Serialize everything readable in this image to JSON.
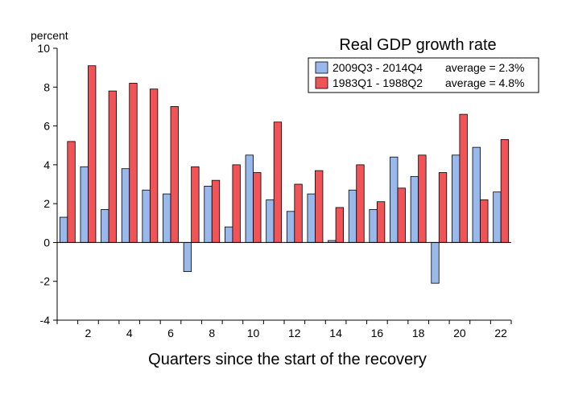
{
  "chart_data": {
    "type": "bar",
    "title": "Real GDP growth rate",
    "ylabel": "percent",
    "xlabel": "Quarters since the start of the recovery",
    "ylim": [
      -4,
      10
    ],
    "yticks": [
      -4,
      -2,
      0,
      2,
      4,
      6,
      8,
      10
    ],
    "categories": [
      1,
      2,
      3,
      4,
      5,
      6,
      7,
      8,
      9,
      10,
      11,
      12,
      13,
      14,
      15,
      16,
      17,
      18,
      19,
      20,
      21,
      22
    ],
    "xtick_labels": [
      2,
      4,
      6,
      8,
      10,
      12,
      14,
      16,
      18,
      20,
      22
    ],
    "series": [
      {
        "name": "2009Q3 - 2014Q4",
        "legend_note": "average = 2.3%",
        "color": "#99b8ec",
        "values": [
          1.3,
          3.9,
          1.7,
          3.8,
          2.7,
          2.5,
          -1.5,
          2.9,
          0.8,
          4.5,
          2.2,
          1.6,
          2.5,
          0.1,
          2.7,
          1.7,
          4.4,
          3.4,
          -2.1,
          4.5,
          4.9,
          2.6
        ]
      },
      {
        "name": "1983Q1 - 1988Q2",
        "legend_note": "average = 4.8%",
        "color": "#f05457",
        "values": [
          5.2,
          9.1,
          7.8,
          8.2,
          7.9,
          7.0,
          3.9,
          3.2,
          4.0,
          3.6,
          6.2,
          3.0,
          3.7,
          1.8,
          4.0,
          2.1,
          2.8,
          4.5,
          3.6,
          6.6,
          2.2,
          5.3
        ]
      }
    ]
  }
}
